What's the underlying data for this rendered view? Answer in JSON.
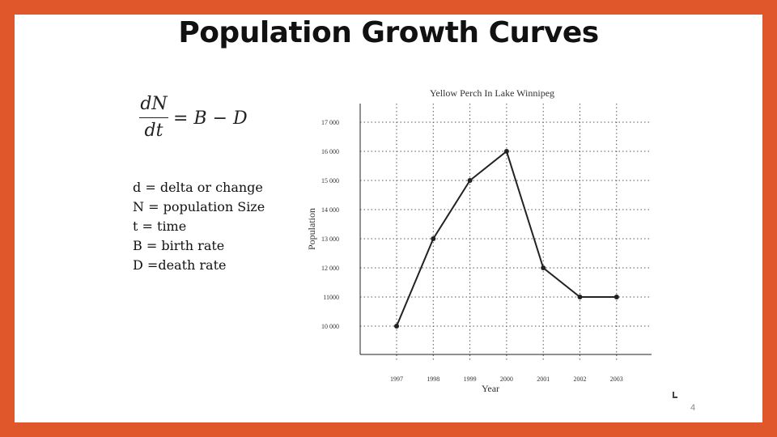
{
  "slide": {
    "title": "Population Growth Curves",
    "formula": {
      "numerator": "dN",
      "denominator": "dt",
      "rhs": "= B − D"
    },
    "definitions": [
      "d = delta or change",
      "N = population Size",
      "t = time",
      "B = birth rate",
      "D =death rate"
    ],
    "page_number": "4"
  },
  "chart_data": {
    "type": "line",
    "title": "Yellow Perch In Lake Winnipeg",
    "xlabel": "Year",
    "ylabel": "Population",
    "categories": [
      "1997",
      "1998",
      "1999",
      "2000",
      "2001",
      "2002",
      "2003"
    ],
    "values": [
      10000,
      13000,
      15000,
      16000,
      12000,
      11000,
      11000
    ],
    "y_ticks": [
      10000,
      11000,
      12000,
      13000,
      14000,
      15000,
      16000,
      17000
    ],
    "y_tick_labels": [
      "10 000",
      "11000",
      "12 000",
      "13 000",
      "14 000",
      "15 000",
      "16 000",
      "17 000"
    ],
    "ylim": [
      9000,
      17000
    ],
    "grid": true,
    "line_color": "#222222",
    "grid_color": "#555555"
  }
}
